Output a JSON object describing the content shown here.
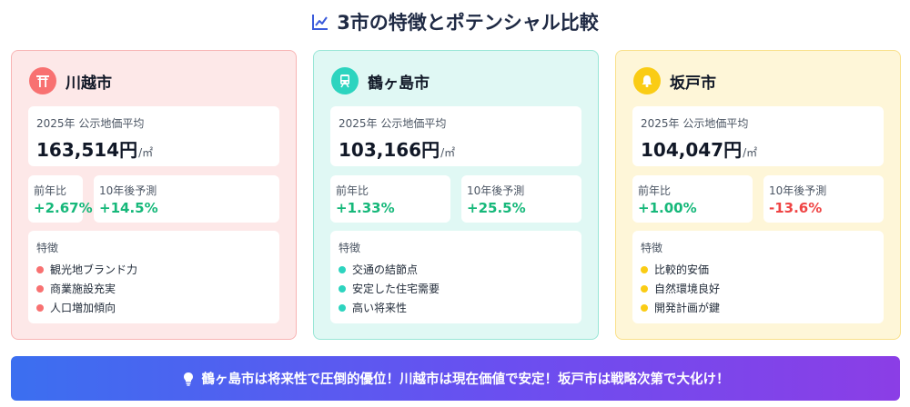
{
  "title": "3市の特徴とポテンシャル比較",
  "icons": {
    "title": "chart-line-icon",
    "banner": "lightbulb-icon"
  },
  "cities": [
    {
      "name": "川越市",
      "icon": "torii-gate-icon",
      "color": "#f87171",
      "price_label": "2025年 公示地価平均",
      "price_value": "163,514円",
      "price_unit": "/㎡",
      "yoy_label": "前年比",
      "yoy_value": "+2.67%",
      "forecast_label": "10年後予測",
      "forecast_value": "+14.5%",
      "features_label": "特徴",
      "features": [
        "観光地ブランド力",
        "商業施設充実",
        "人口増加傾向"
      ]
    },
    {
      "name": "鶴ヶ島市",
      "icon": "train-icon",
      "color": "#2dd4bf",
      "price_label": "2025年 公示地価平均",
      "price_value": "103,166円",
      "price_unit": "/㎡",
      "yoy_label": "前年比",
      "yoy_value": "+1.33%",
      "forecast_label": "10年後予測",
      "forecast_value": "+25.5%",
      "features_label": "特徴",
      "features": [
        "交通の結節点",
        "安定した住宅需要",
        "高い将来性"
      ]
    },
    {
      "name": "坂戸市",
      "icon": "bell-icon",
      "color": "#facc15",
      "price_label": "2025年 公示地価平均",
      "price_value": "104,047円",
      "price_unit": "/㎡",
      "yoy_label": "前年比",
      "yoy_value": "+1.00%",
      "forecast_label": "10年後予測",
      "forecast_value": "-13.6%",
      "features_label": "特徴",
      "features": [
        "比較的安価",
        "自然環境良好",
        "開発計画が鍵"
      ]
    }
  ],
  "banner": "鶴ヶ島市は将来性で圧倒的優位！川越市は現在価値で安定！坂戸市は戦略次第で大化け！"
}
